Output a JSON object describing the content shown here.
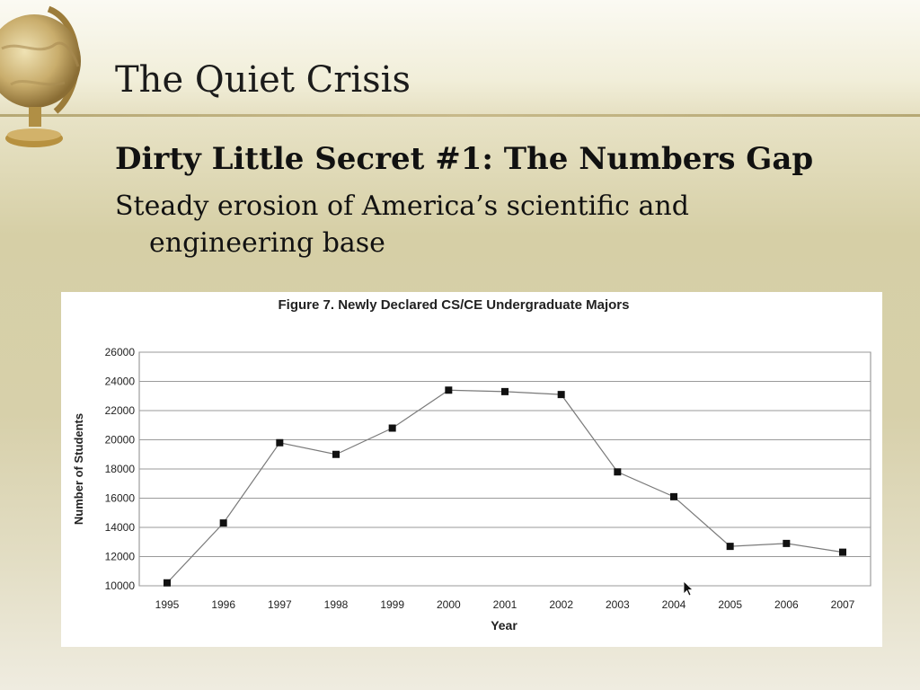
{
  "slide": {
    "title": "The Quiet Crisis",
    "heading": "Dirty Little Secret #1: The Numbers Gap",
    "body_line1": "Steady erosion of America’s scientific and",
    "body_line2": "engineering base"
  },
  "icons": {
    "globe": "globe-icon",
    "cursor": "mouse-pointer-icon"
  },
  "colors": {
    "line": "#7a7a7a",
    "marker": "#111111",
    "grid": "#9a9a9a",
    "background": "#d6cfa6"
  },
  "chart_data": {
    "type": "line",
    "title": "Figure 7. Newly Declared CS/CE Undergraduate Majors",
    "xlabel": "Year",
    "ylabel": "Number of Students",
    "categories": [
      "1995",
      "1996",
      "1997",
      "1998",
      "1999",
      "2000",
      "2001",
      "2002",
      "2003",
      "2004",
      "2005",
      "2006",
      "2007"
    ],
    "series": [
      {
        "values": [
          10200,
          14300,
          19800,
          19000,
          20800,
          23400,
          23300,
          23100,
          17800,
          16100,
          12700,
          12900,
          12300
        ]
      }
    ],
    "ylim": [
      10000,
      26000
    ],
    "yticks": [
      "10000",
      "12000",
      "14000",
      "16000",
      "18000",
      "20000",
      "22000",
      "24000",
      "26000"
    ],
    "grid": true,
    "legend": "none"
  }
}
